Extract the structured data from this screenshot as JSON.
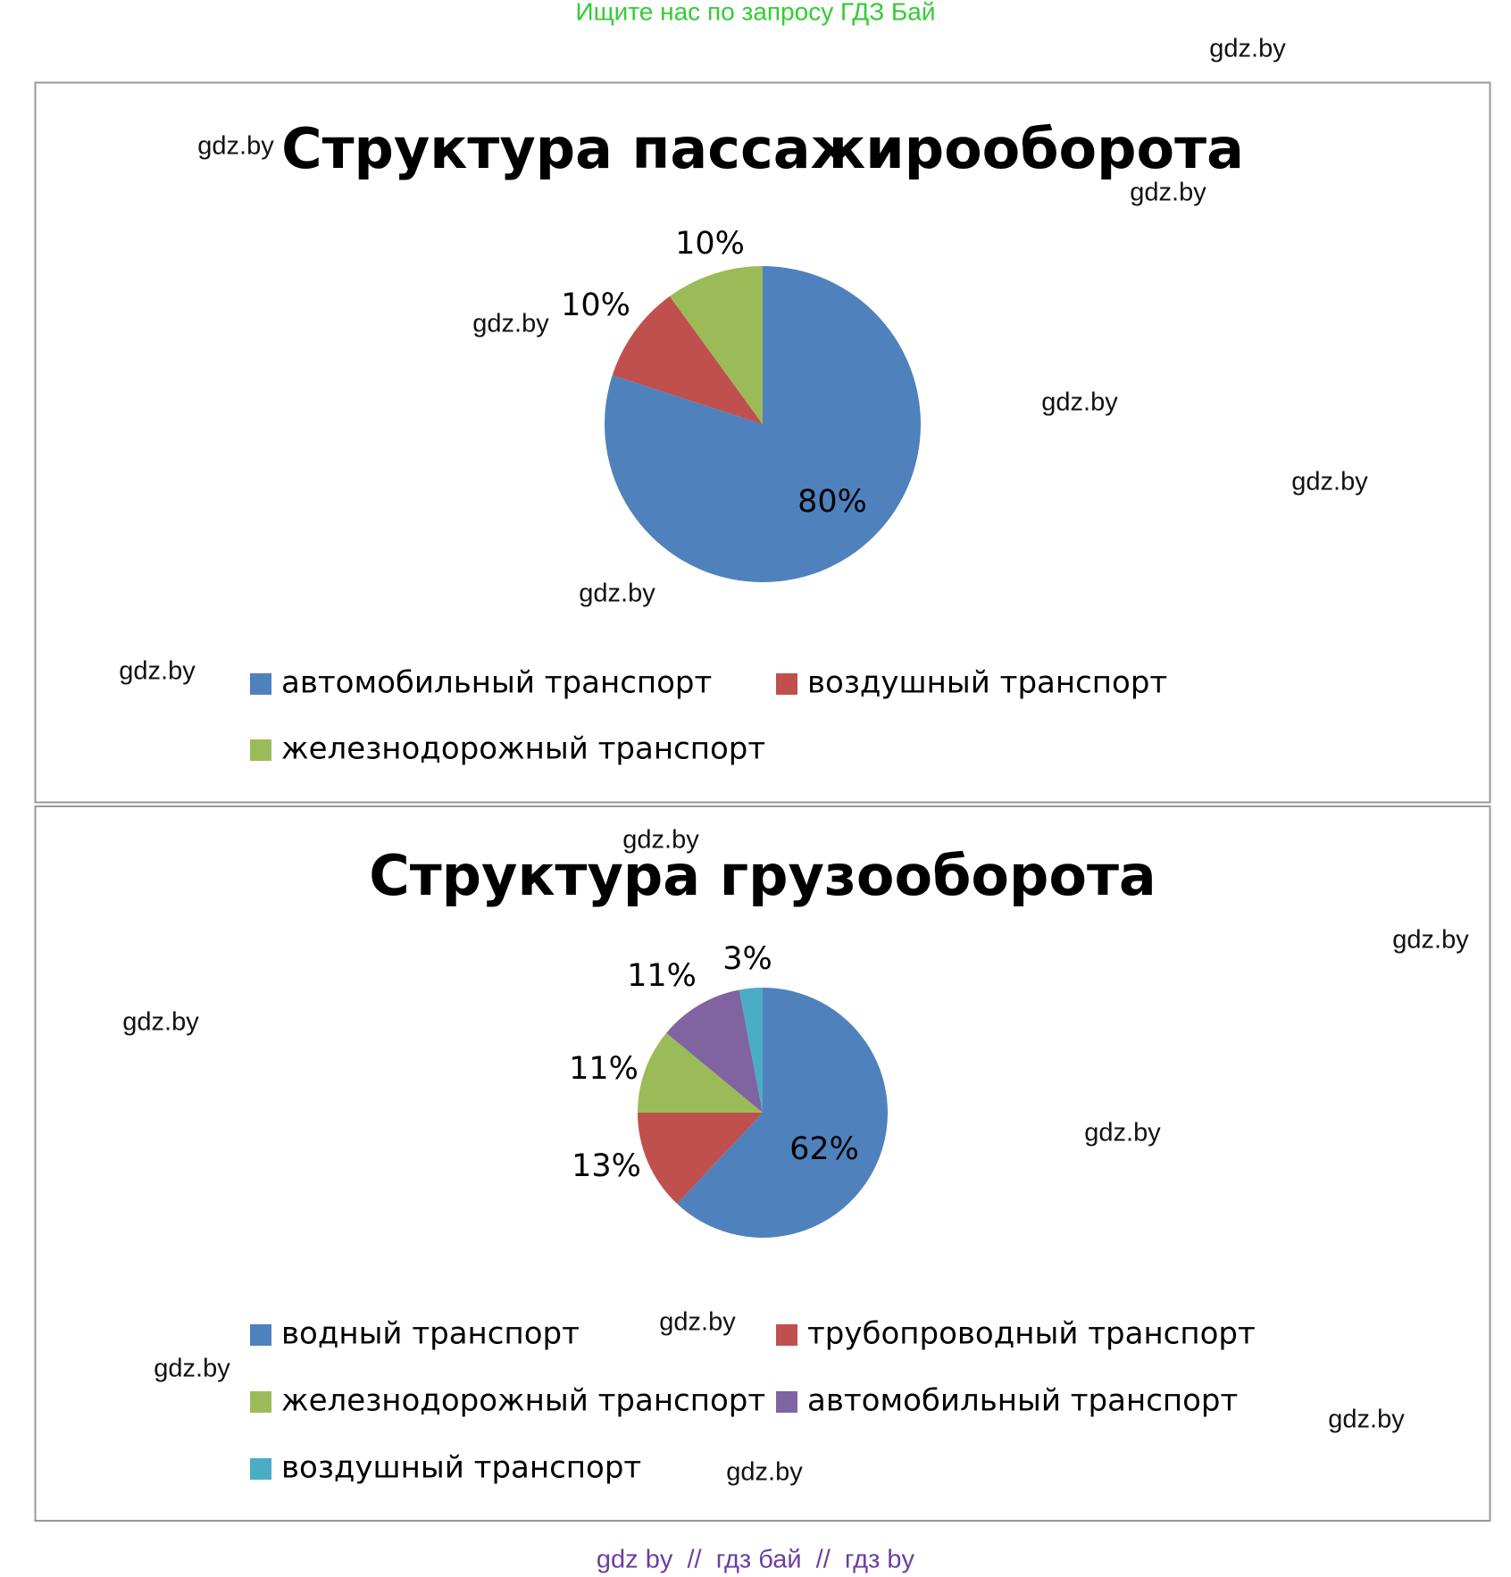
{
  "header": "Ищите нас по запросу ГДЗ Бай",
  "footer": "gdz by  //  гдз бай  //  гдз by",
  "watermarks": [
    "gdz.by",
    "gdz.by",
    "gdz.by",
    "gdz.by",
    "gdz.by",
    "gdz.by",
    "gdz.by",
    "gdz.by",
    "gdz.by",
    "gdz.by",
    "gdz.by",
    "gdz.by",
    "gdz.by",
    "gdz.by",
    "gdz.by",
    "gdz.by"
  ],
  "chart_data": [
    {
      "type": "pie",
      "title": "Структура пассажирооборота",
      "categories": [
        "автомобильный транспорт",
        "воздушный транспорт",
        "железнодорожный транспорт"
      ],
      "values": [
        80,
        10,
        10
      ],
      "value_labels": [
        "80%",
        "10%",
        "10%"
      ],
      "colors": [
        "#4f81bd",
        "#c0504d",
        "#9bbb59"
      ]
    },
    {
      "type": "pie",
      "title": "Структура грузооборота",
      "categories": [
        "водный транспорт",
        "трубопроводный транспорт",
        "железнодорожный транспорт",
        "автомобильный транспорт",
        "воздушный транспорт"
      ],
      "values": [
        62,
        13,
        11,
        11,
        3
      ],
      "value_labels": [
        "62%",
        "13%",
        "11%",
        "11%",
        "3%"
      ],
      "colors": [
        "#4f81bd",
        "#c0504d",
        "#9bbb59",
        "#8064a2",
        "#4bacc6"
      ]
    }
  ]
}
